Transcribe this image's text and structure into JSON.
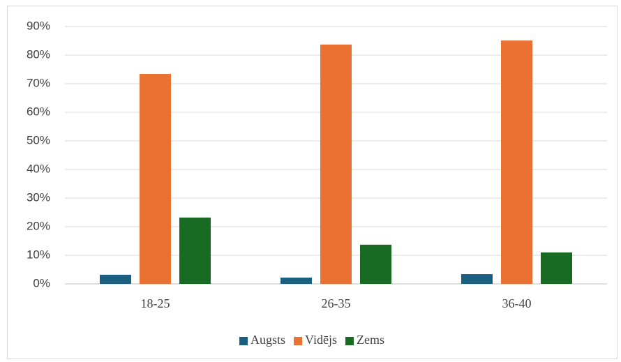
{
  "chart_data": {
    "type": "bar",
    "categories": [
      "18-25",
      "26-35",
      "36-40"
    ],
    "series": [
      {
        "name": "Augsts",
        "color": "#1a5e80",
        "values": [
          3.2,
          2.2,
          3.4
        ]
      },
      {
        "name": "Vidējs",
        "color": "#e97132",
        "values": [
          73.4,
          83.7,
          85.1
        ]
      },
      {
        "name": "Zems",
        "color": "#196b24",
        "values": [
          23.2,
          13.7,
          11.0
        ]
      }
    ],
    "ylim": [
      0,
      90
    ],
    "yticks": [
      {
        "value": 0,
        "label": "0%"
      },
      {
        "value": 10,
        "label": "10%"
      },
      {
        "value": 20,
        "label": "20%"
      },
      {
        "value": 30,
        "label": "30%"
      },
      {
        "value": 40,
        "label": "40%"
      },
      {
        "value": 50,
        "label": "50%"
      },
      {
        "value": 60,
        "label": "60%"
      },
      {
        "value": 70,
        "label": "70%"
      },
      {
        "value": 80,
        "label": "80%"
      },
      {
        "value": 90,
        "label": "90%"
      }
    ],
    "grid": true,
    "legend": "bottom"
  }
}
